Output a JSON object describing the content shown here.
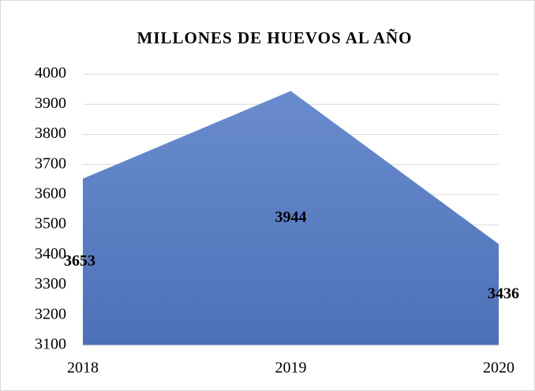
{
  "chart_data": {
    "type": "area",
    "title": "MILLONES DE HUEVOS AL AÑO",
    "categories": [
      "2018",
      "2019",
      "2020"
    ],
    "values": [
      3653,
      3944,
      3436
    ],
    "color": "#5b7fc4",
    "ylim": [
      3100,
      4000
    ],
    "yticks": [
      3100,
      3200,
      3300,
      3400,
      3500,
      3600,
      3700,
      3800,
      3900,
      4000
    ],
    "grid": true
  }
}
